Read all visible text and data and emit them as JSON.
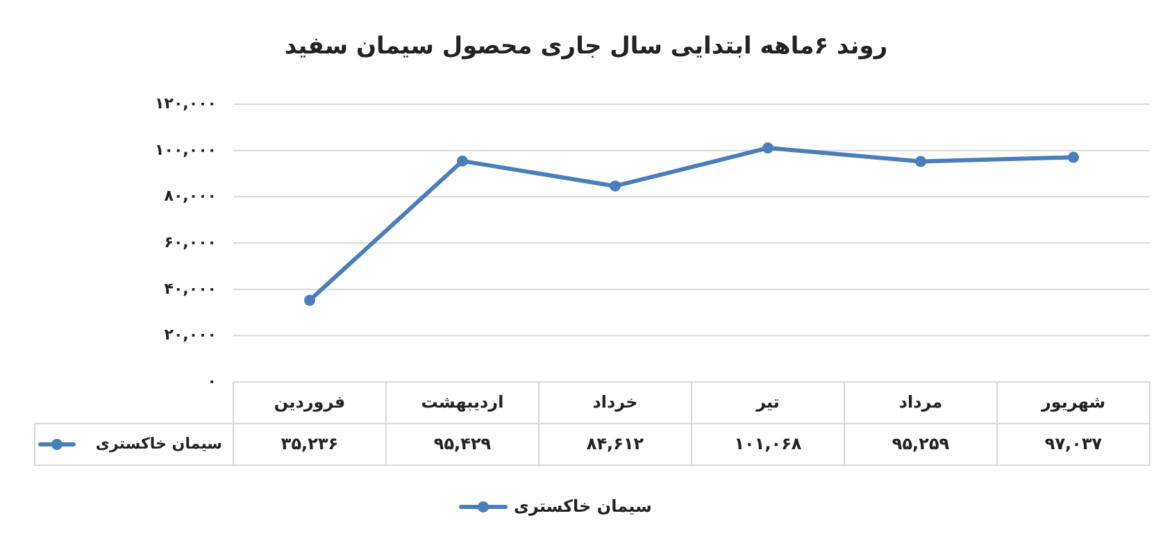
{
  "chart_data": {
    "type": "line",
    "title": "روند ۶ماهه ابتدایی سال جاری محصول سیمان سفید",
    "categories": [
      "فروردین",
      "اردیبهشت",
      "خرداد",
      "تیر",
      "مرداد",
      "شهریور"
    ],
    "series": [
      {
        "name": "سیمان خاکستری",
        "color": "#4a7ebb",
        "values": [
          35236,
          95429,
          84612,
          101068,
          95259,
          97037
        ],
        "value_labels": [
          "۳۵,۲۳۶",
          "۹۵,۴۲۹",
          "۸۴,۶۱۲",
          "۱۰۱,۰۶۸",
          "۹۵,۲۵۹",
          "۹۷,۰۳۷"
        ]
      }
    ],
    "ylim": [
      0,
      120000
    ],
    "yticks": [
      {
        "value": 0,
        "label": "۰"
      },
      {
        "value": 20000,
        "label": "۲۰,۰۰۰"
      },
      {
        "value": 40000,
        "label": "۴۰,۰۰۰"
      },
      {
        "value": 60000,
        "label": "۶۰,۰۰۰"
      },
      {
        "value": 80000,
        "label": "۸۰,۰۰۰"
      },
      {
        "value": 100000,
        "label": "۱۰۰,۰۰۰"
      },
      {
        "value": 120000,
        "label": "۱۲۰,۰۰۰"
      }
    ],
    "grid": "y",
    "legend": "bottom",
    "marker": "circle"
  }
}
